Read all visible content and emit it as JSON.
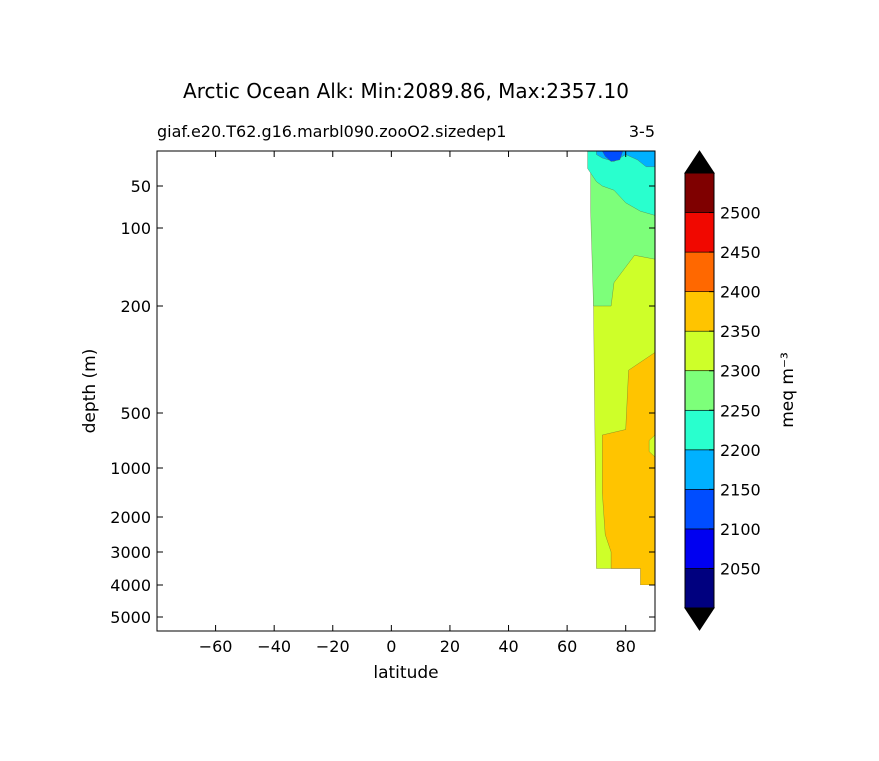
{
  "chart_data": {
    "type": "heatmap",
    "title": "Arctic Ocean Alk: Min:2089.86, Max:2357.10",
    "subtitle_left": "giaf.e20.T62.g16.marbl090.zooO2.sizedep1",
    "subtitle_right": "3-5",
    "xlabel": "latitude",
    "ylabel": "depth (m)",
    "xlim": [
      -80,
      90
    ],
    "x_ticks": [
      -60,
      -40,
      -20,
      0,
      20,
      40,
      60,
      80
    ],
    "x_tick_labels": [
      "−60",
      "−40",
      "−20",
      "0",
      "20",
      "40",
      "60",
      "80"
    ],
    "y_ticks": [
      50,
      100,
      200,
      500,
      1000,
      2000,
      3000,
      4000,
      5000
    ],
    "y_tick_labels": [
      "50",
      "100",
      "200",
      "500",
      "1000",
      "2000",
      "3000",
      "4000",
      "5000"
    ],
    "colorbar": {
      "label": "meq m⁻³",
      "levels": [
        2000,
        2050,
        2100,
        2150,
        2200,
        2250,
        2300,
        2350,
        2400,
        2450,
        2500,
        2550
      ],
      "tick_values": [
        2050,
        2100,
        2150,
        2200,
        2250,
        2300,
        2350,
        2400,
        2450,
        2500
      ],
      "tick_labels": [
        "2050",
        "2100",
        "2150",
        "2200",
        "2250",
        "2300",
        "2350",
        "2400",
        "2450",
        "2500"
      ],
      "colors": [
        "#00007f",
        "#0000f1",
        "#004dff",
        "#00b1ff",
        "#29ffce",
        "#7dff7a",
        "#ceff29",
        "#ffc400",
        "#ff6800",
        "#f10800",
        "#7f0000"
      ],
      "under_color": "#000000",
      "over_color": "#000000",
      "extend": "both"
    },
    "contour_regions": [
      {
        "level": [
          2300,
          2350
        ],
        "color": "#ceff29",
        "polygon": [
          [
            69,
            10
          ],
          [
            90,
            10
          ],
          [
            90,
            3500
          ],
          [
            70,
            3500
          ],
          [
            69,
            200
          ]
        ]
      },
      {
        "level": [
          2350,
          2400
        ],
        "color": "#ffc400",
        "polygon": [
          [
            72,
            700
          ],
          [
            80,
            650
          ],
          [
            81,
            380
          ],
          [
            90,
            330
          ],
          [
            90,
            4000
          ],
          [
            85,
            4000
          ],
          [
            85,
            3500
          ],
          [
            75,
            3500
          ],
          [
            75,
            3000
          ],
          [
            73,
            2500
          ],
          [
            72,
            1500
          ]
        ]
      },
      {
        "level": [
          2250,
          2300
        ],
        "color": "#7dff7a",
        "polygon": [
          [
            68,
            30
          ],
          [
            90,
            70
          ],
          [
            90,
            140
          ],
          [
            83,
            135
          ],
          [
            80,
            150
          ],
          [
            76,
            170
          ],
          [
            75,
            200
          ],
          [
            72,
            200
          ],
          [
            69,
            200
          ],
          [
            68,
            80
          ]
        ]
      },
      {
        "level": [
          2200,
          2250
        ],
        "color": "#29ffce",
        "polygon": [
          [
            67,
            10
          ],
          [
            90,
            10
          ],
          [
            90,
            85
          ],
          [
            85,
            80
          ],
          [
            80,
            70
          ],
          [
            76,
            55
          ],
          [
            72,
            50
          ],
          [
            70,
            45
          ],
          [
            67,
            30
          ]
        ]
      },
      {
        "level": [
          2150,
          2200
        ],
        "color": "#00b1ff",
        "polygon": [
          [
            70,
            10
          ],
          [
            90,
            10
          ],
          [
            90,
            28
          ],
          [
            87,
            28
          ],
          [
            84,
            20
          ],
          [
            80,
            14
          ],
          [
            76,
            22
          ],
          [
            72,
            18
          ],
          [
            70,
            14
          ]
        ]
      },
      {
        "level": [
          2100,
          2150
        ],
        "color": "#004dff",
        "polygon": [
          [
            72,
            10
          ],
          [
            79,
            10
          ],
          [
            78,
            20
          ],
          [
            75,
            22
          ],
          [
            73,
            16
          ]
        ]
      },
      {
        "level": [
          2300,
          2350
        ],
        "color": "#ceff29",
        "polygon": [
          [
            88,
            750
          ],
          [
            90,
            700
          ],
          [
            90,
            900
          ],
          [
            88,
            850
          ]
        ]
      }
    ],
    "bottom_mask": [
      {
        "polygon": [
          [
            85,
            4000
          ],
          [
            90,
            4000
          ],
          [
            90,
            5600
          ],
          [
            85,
            5600
          ]
        ]
      }
    ]
  }
}
